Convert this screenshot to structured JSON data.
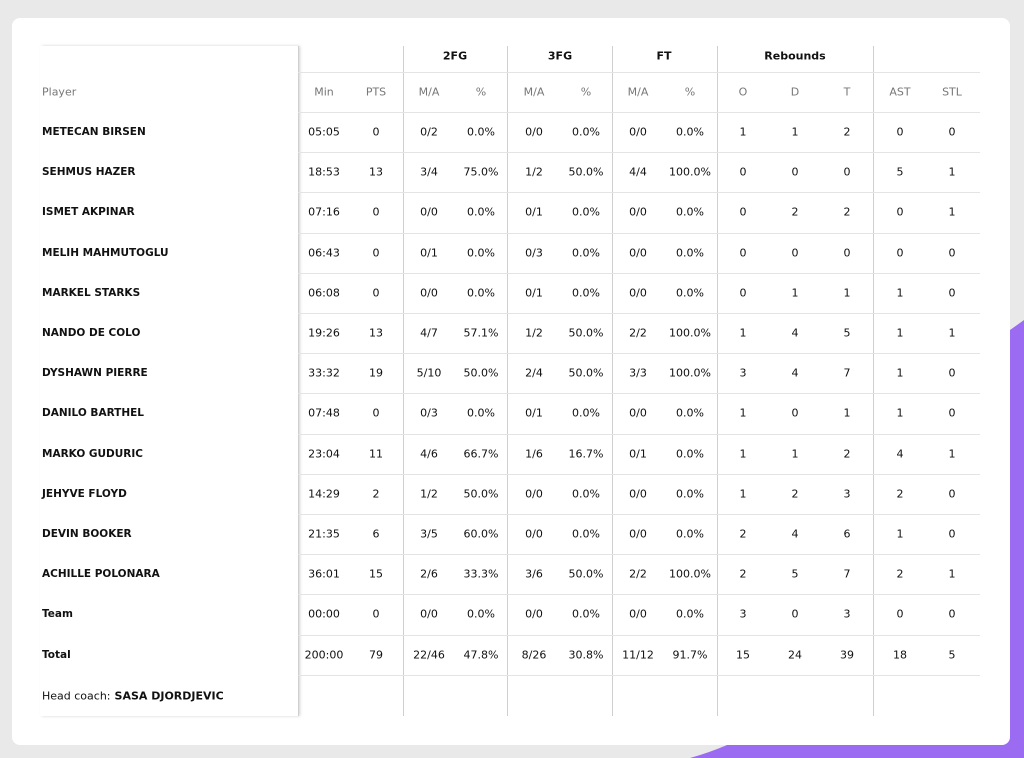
{
  "group_headers": [
    "2FG",
    "3FG",
    "FT",
    "Rebounds"
  ],
  "columns": [
    "Player",
    "Min",
    "PTS",
    "M/A",
    "%",
    "M/A",
    "%",
    "M/A",
    "%",
    "O",
    "D",
    "T",
    "AST",
    "STL"
  ],
  "rows": [
    [
      "METECAN BIRSEN",
      "05:05",
      "0",
      "0/2",
      "0.0%",
      "0/0",
      "0.0%",
      "0/0",
      "0.0%",
      "1",
      "1",
      "2",
      "0",
      "0"
    ],
    [
      "SEHMUS HAZER",
      "18:53",
      "13",
      "3/4",
      "75.0%",
      "1/2",
      "50.0%",
      "4/4",
      "100.0%",
      "0",
      "0",
      "0",
      "5",
      "1"
    ],
    [
      "ISMET AKPINAR",
      "07:16",
      "0",
      "0/0",
      "0.0%",
      "0/1",
      "0.0%",
      "0/0",
      "0.0%",
      "0",
      "2",
      "2",
      "0",
      "1"
    ],
    [
      "MELIH MAHMUTOGLU",
      "06:43",
      "0",
      "0/1",
      "0.0%",
      "0/3",
      "0.0%",
      "0/0",
      "0.0%",
      "0",
      "0",
      "0",
      "0",
      "0"
    ],
    [
      "MARKEL STARKS",
      "06:08",
      "0",
      "0/0",
      "0.0%",
      "0/1",
      "0.0%",
      "0/0",
      "0.0%",
      "0",
      "1",
      "1",
      "1",
      "0"
    ],
    [
      "NANDO DE COLO",
      "19:26",
      "13",
      "4/7",
      "57.1%",
      "1/2",
      "50.0%",
      "2/2",
      "100.0%",
      "1",
      "4",
      "5",
      "1",
      "1"
    ],
    [
      "DYSHAWN PIERRE",
      "33:32",
      "19",
      "5/10",
      "50.0%",
      "2/4",
      "50.0%",
      "3/3",
      "100.0%",
      "3",
      "4",
      "7",
      "1",
      "0"
    ],
    [
      "DANILO BARTHEL",
      "07:48",
      "0",
      "0/3",
      "0.0%",
      "0/1",
      "0.0%",
      "0/0",
      "0.0%",
      "1",
      "0",
      "1",
      "1",
      "0"
    ],
    [
      "MARKO GUDURIC",
      "23:04",
      "11",
      "4/6",
      "66.7%",
      "1/6",
      "16.7%",
      "0/1",
      "0.0%",
      "1",
      "1",
      "2",
      "4",
      "1"
    ],
    [
      "JEHYVE FLOYD",
      "14:29",
      "2",
      "1/2",
      "50.0%",
      "0/0",
      "0.0%",
      "0/0",
      "0.0%",
      "1",
      "2",
      "3",
      "2",
      "0"
    ],
    [
      "DEVIN BOOKER",
      "21:35",
      "6",
      "3/5",
      "60.0%",
      "0/0",
      "0.0%",
      "0/0",
      "0.0%",
      "2",
      "4",
      "6",
      "1",
      "0"
    ],
    [
      "ACHILLE POLONARA",
      "36:01",
      "15",
      "2/6",
      "33.3%",
      "3/6",
      "50.0%",
      "2/2",
      "100.0%",
      "2",
      "5",
      "7",
      "2",
      "1"
    ],
    [
      "Team",
      "00:00",
      "0",
      "0/0",
      "0.0%",
      "0/0",
      "0.0%",
      "0/0",
      "0.0%",
      "3",
      "0",
      "3",
      "0",
      "0"
    ],
    [
      "Total",
      "200:00",
      "79",
      "22/46",
      "47.8%",
      "8/26",
      "30.8%",
      "11/12",
      "91.7%",
      "15",
      "24",
      "39",
      "18",
      "5"
    ]
  ],
  "coach": {
    "label": "Head coach:",
    "name": "SASA DJORDJEVIC"
  }
}
